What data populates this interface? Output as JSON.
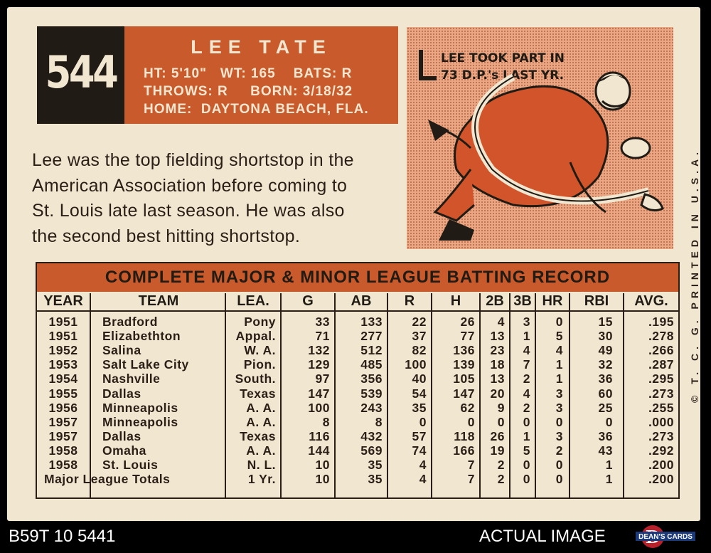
{
  "card": {
    "number": "544",
    "name": "LEE TATE",
    "info_lines": [
      "HT: 5'10\"   WT: 165    BATS: R",
      "THROWS: R     BORN: 3/18/32",
      "HOME:  DAYTONA BEACH, FLA."
    ],
    "bio_lines": [
      "Lee was the top fielding shortstop in the",
      "American Association before coming to",
      "St. Louis late last season. He was also",
      "the second best hitting shortstop."
    ],
    "cartoon_caption_lines": [
      "LEE TOOK PART IN",
      "73 D.P.'s LAST YR."
    ],
    "side_text": "© T. C. G.   PRINTED IN U.S.A."
  },
  "table": {
    "title": "COMPLETE MAJOR & MINOR LEAGUE BATTING RECORD",
    "headers": [
      "YEAR",
      "TEAM",
      "LEA.",
      "G",
      "AB",
      "R",
      "H",
      "2B",
      "3B",
      "HR",
      "RBI",
      "AVG."
    ],
    "rows": [
      [
        "1951",
        "Bradford",
        "Pony",
        "33",
        "133",
        "22",
        "26",
        "4",
        "3",
        "0",
        "15",
        ".195"
      ],
      [
        "1951",
        "Elizabethton",
        "Appal.",
        "71",
        "277",
        "37",
        "77",
        "13",
        "1",
        "5",
        "30",
        ".278"
      ],
      [
        "1952",
        "Salina",
        "W. A.",
        "132",
        "512",
        "82",
        "136",
        "23",
        "4",
        "4",
        "49",
        ".266"
      ],
      [
        "1953",
        "Salt Lake City",
        "Pion.",
        "129",
        "485",
        "100",
        "139",
        "18",
        "7",
        "1",
        "32",
        ".287"
      ],
      [
        "1954",
        "Nashville",
        "South.",
        "97",
        "356",
        "40",
        "105",
        "13",
        "2",
        "1",
        "36",
        ".295"
      ],
      [
        "1955",
        "Dallas",
        "Texas",
        "147",
        "539",
        "54",
        "147",
        "20",
        "4",
        "3",
        "60",
        ".273"
      ],
      [
        "1956",
        "Minneapolis",
        "A. A.",
        "100",
        "243",
        "35",
        "62",
        "9",
        "2",
        "3",
        "25",
        ".255"
      ],
      [
        "1957",
        "Minneapolis",
        "A. A.",
        "8",
        "8",
        "0",
        "0",
        "0",
        "0",
        "0",
        "0",
        ".000"
      ],
      [
        "1957",
        "Dallas",
        "Texas",
        "116",
        "432",
        "57",
        "118",
        "26",
        "1",
        "3",
        "36",
        ".273"
      ],
      [
        "1958",
        "Omaha",
        "A. A.",
        "144",
        "569",
        "74",
        "166",
        "19",
        "5",
        "2",
        "43",
        ".292"
      ],
      [
        "1958",
        "St. Louis",
        "N. L.",
        "10",
        "35",
        "4",
        "7",
        "2",
        "0",
        "0",
        "1",
        ".200"
      ]
    ],
    "totals": {
      "label": "Major League Totals",
      "league": "1 Yr.",
      "values": [
        "10",
        "35",
        "4",
        "7",
        "2",
        "0",
        "0",
        "1",
        ".200"
      ]
    }
  },
  "footer": {
    "left": "B59T 10 5441",
    "right": "ACTUAL IMAGE",
    "logo_text": "DEAN'S CARDS",
    "logo_letter": "D"
  },
  "colors": {
    "card": "#f1e7d0",
    "accent": "#c95a2b",
    "ink": "#211b15"
  }
}
